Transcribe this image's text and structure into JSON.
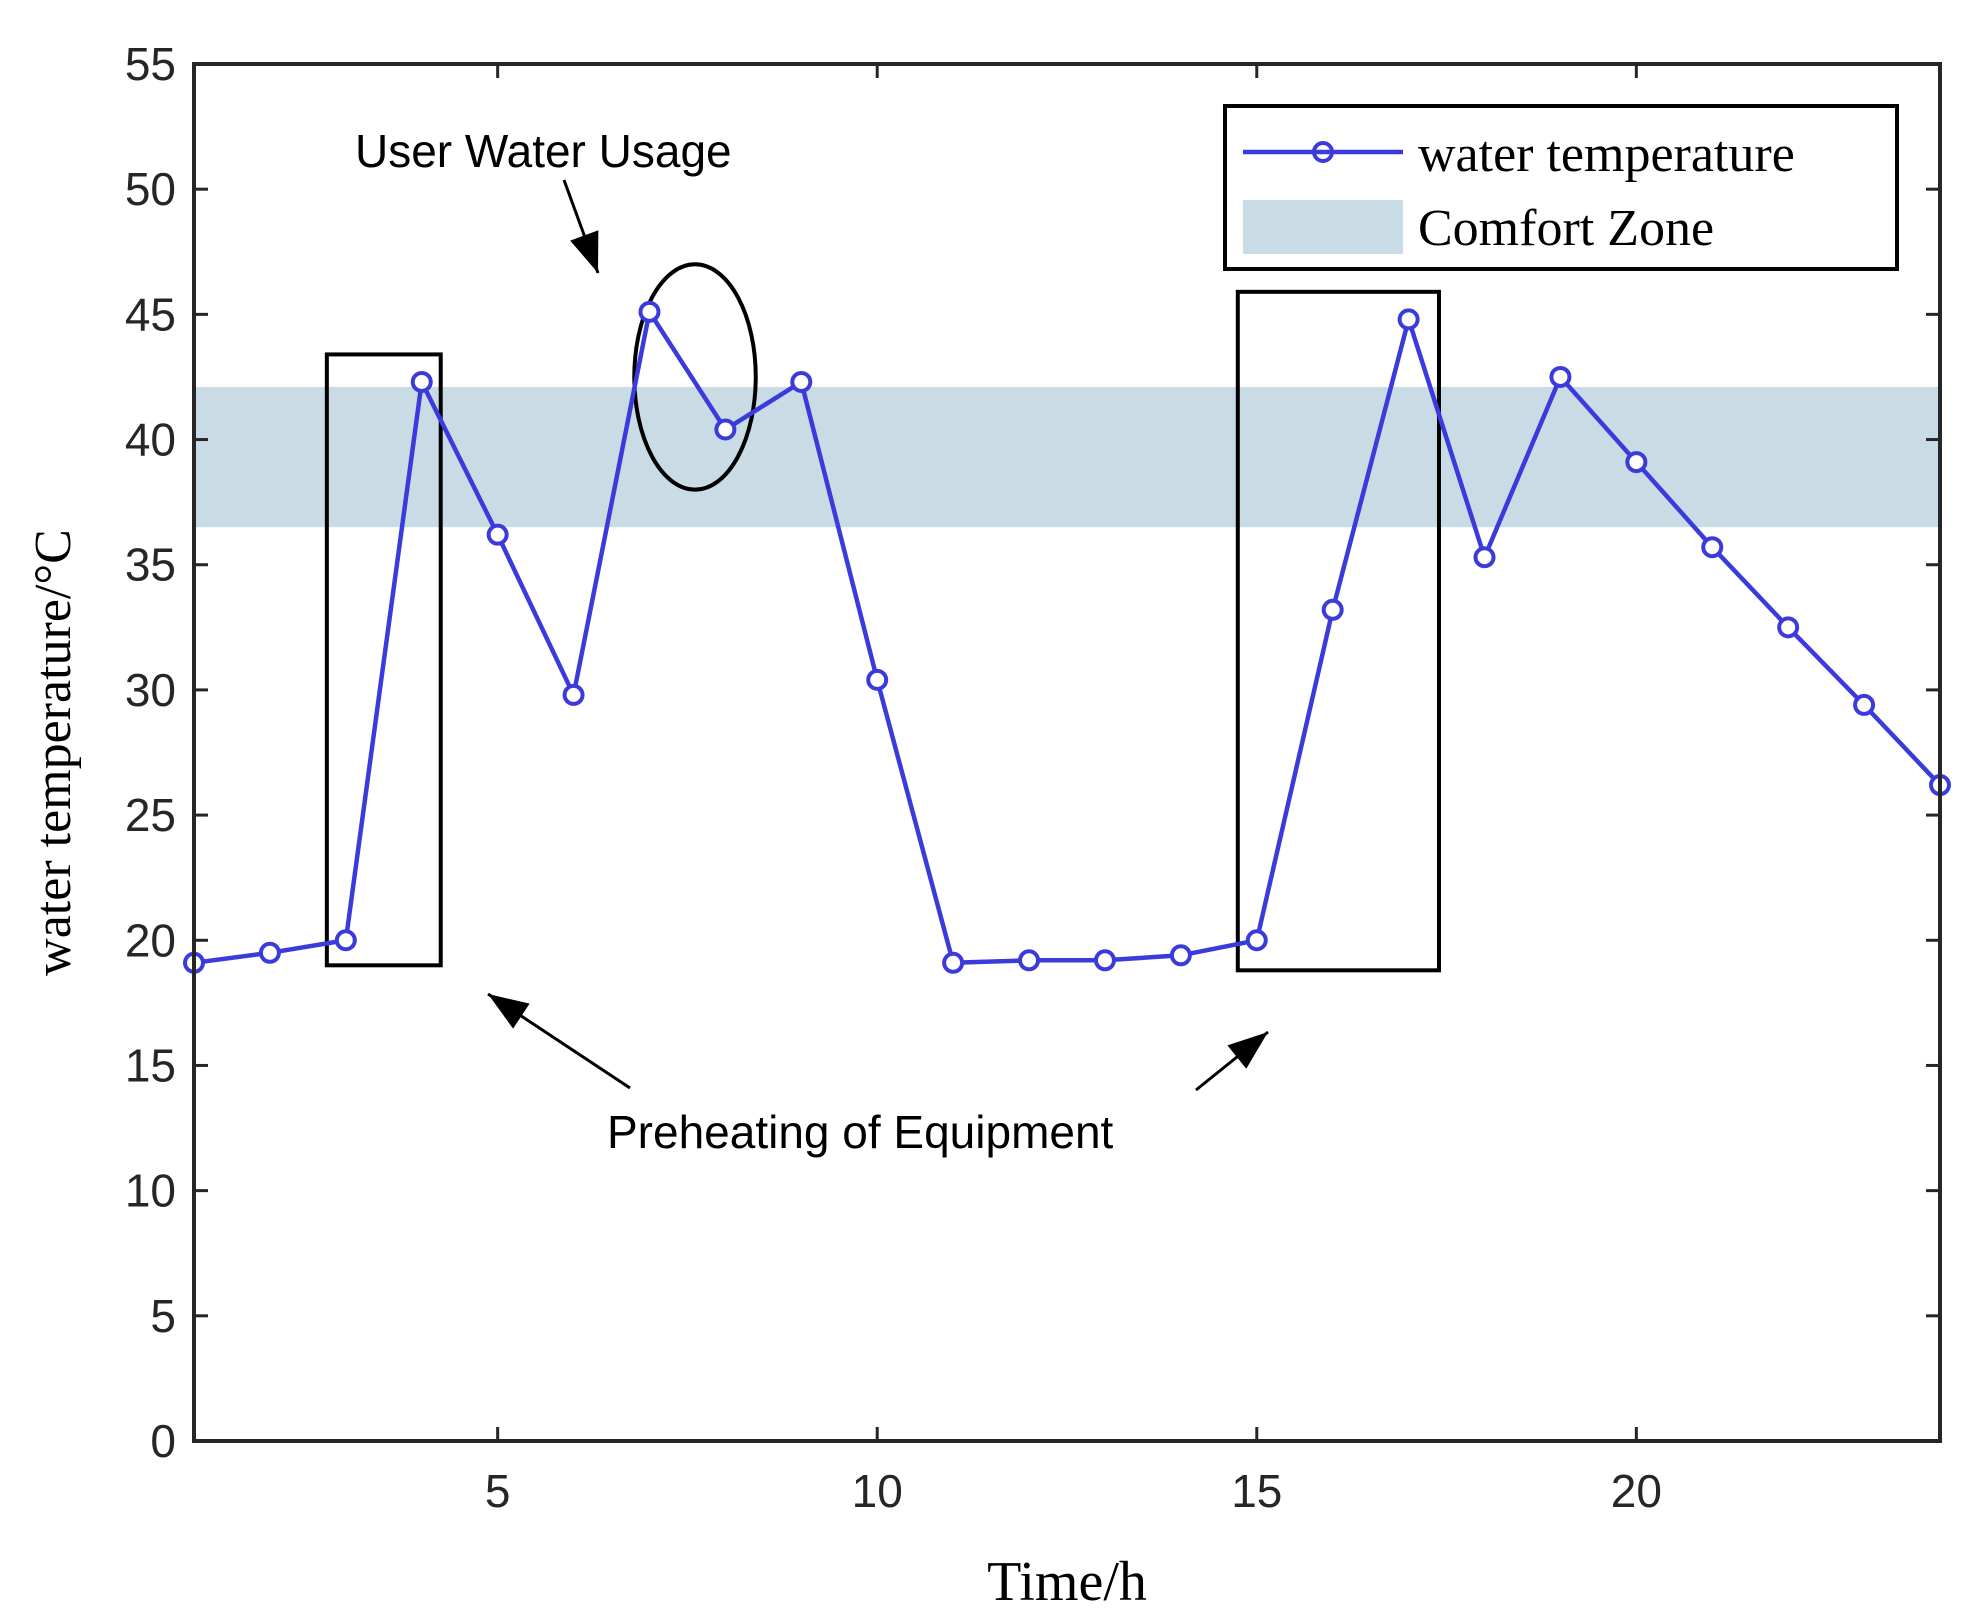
{
  "chart_data": {
    "type": "line",
    "xlabel": "Time/h",
    "ylabel": "water temperature/°C",
    "xlim": [
      1,
      24
    ],
    "ylim": [
      0,
      55
    ],
    "xticks": [
      5,
      10,
      15,
      20
    ],
    "yticks": [
      0,
      5,
      10,
      15,
      20,
      25,
      30,
      35,
      40,
      45,
      50,
      55
    ],
    "grid": false,
    "legend_position": "top-right",
    "series": [
      {
        "name": "water temperature",
        "color": "#3b3bdc",
        "marker": "circle",
        "x": [
          1,
          2,
          3,
          4,
          5,
          6,
          7,
          8,
          9,
          10,
          11,
          12,
          13,
          14,
          15,
          16,
          17,
          18,
          19,
          20,
          21,
          22,
          23,
          24
        ],
        "values": [
          19.1,
          19.5,
          20.0,
          42.3,
          36.2,
          29.8,
          45.1,
          40.4,
          42.3,
          30.4,
          19.1,
          19.2,
          19.2,
          19.4,
          20.0,
          33.2,
          44.8,
          35.3,
          42.5,
          39.1,
          35.7,
          32.5,
          29.4,
          26.2
        ]
      }
    ],
    "bands": [
      {
        "name": "Comfort Zone",
        "y0": 36.5,
        "y1": 42.1,
        "color": "#c9dce6"
      }
    ],
    "annotations": [
      {
        "text": "User Water Usage",
        "shape": "ellipse",
        "x_range": [
          6.8,
          8.4
        ],
        "y_range": [
          38,
          47
        ]
      },
      {
        "text": "Preheating of Equipment",
        "shape": "rectangles",
        "rects": [
          {
            "x0": 2.75,
            "x1": 4.25,
            "y0": 19,
            "y1": 43.4
          },
          {
            "x0": 14.75,
            "x1": 17.4,
            "y0": 18.8,
            "y1": 45.9
          }
        ]
      }
    ]
  }
}
